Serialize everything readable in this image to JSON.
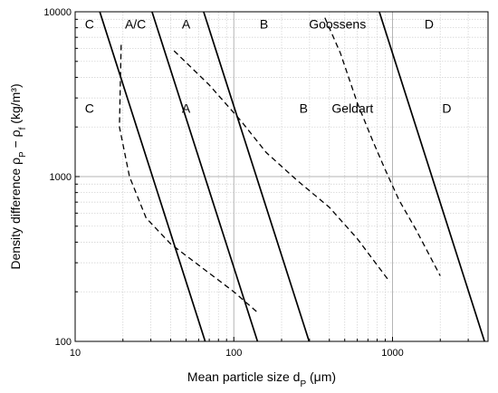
{
  "chart_data": {
    "type": "line",
    "xscale": "log",
    "yscale": "log",
    "xlim": [
      10,
      4000
    ],
    "ylim": [
      100,
      10000
    ],
    "grid": true,
    "xlabel": "Mean particle size d",
    "xlabel_sub": "P",
    "xlabel_unit": " (μm)",
    "ylabel": "Density difference ρ",
    "ylabel_sub1": "P",
    "ylabel_mid": " − ρ",
    "ylabel_sub2": "f",
    "ylabel_unit": " (kg/m³)",
    "xticks": [
      {
        "value": 10,
        "label": "10"
      },
      {
        "value": 100,
        "label": "100"
      },
      {
        "value": 1000,
        "label": "1000"
      }
    ],
    "yticks": [
      {
        "value": 100,
        "label": "100"
      },
      {
        "value": 1000,
        "label": "1000"
      },
      {
        "value": 10000,
        "label": "10000"
      }
    ],
    "series": [
      {
        "style": "solid",
        "points": [
          [
            14.3,
            10000
          ],
          [
            66,
            100
          ]
        ]
      },
      {
        "style": "solid",
        "points": [
          [
            30.5,
            10000
          ],
          [
            141,
            100
          ]
        ]
      },
      {
        "style": "solid",
        "points": [
          [
            64.5,
            10000
          ],
          [
            298,
            100
          ]
        ]
      },
      {
        "style": "solid",
        "points": [
          [
            825,
            10000
          ],
          [
            3800,
            100
          ]
        ]
      },
      {
        "style": "dashed",
        "points": [
          [
            19.5,
            6300
          ],
          [
            19,
            2000
          ],
          [
            22,
            1000
          ],
          [
            28,
            560
          ],
          [
            40,
            390
          ],
          [
            60,
            290
          ],
          [
            100,
            200
          ],
          [
            141,
            150
          ]
        ]
      },
      {
        "style": "dashed",
        "points": [
          [
            42,
            5800
          ],
          [
            70,
            3600
          ],
          [
            110,
            2200
          ],
          [
            160,
            1400
          ],
          [
            250,
            950
          ],
          [
            400,
            650
          ],
          [
            600,
            420
          ],
          [
            960,
            230
          ]
        ]
      },
      {
        "style": "dashed",
        "points": [
          [
            375,
            9200
          ],
          [
            470,
            5600
          ],
          [
            600,
            2800
          ],
          [
            750,
            1650
          ],
          [
            900,
            1100
          ],
          [
            1100,
            720
          ],
          [
            1400,
            480
          ],
          [
            2000,
            250
          ]
        ]
      }
    ],
    "annotations": [
      {
        "text": "C",
        "x": 12.3,
        "y": 8300
      },
      {
        "text": "A/C",
        "x": 24,
        "y": 8300
      },
      {
        "text": "A",
        "x": 50,
        "y": 8300
      },
      {
        "text": "B",
        "x": 155,
        "y": 8300
      },
      {
        "text": "Goossens",
        "x": 450,
        "y": 8300
      },
      {
        "text": "D",
        "x": 1700,
        "y": 8300
      },
      {
        "text": "C",
        "x": 12.3,
        "y": 2550
      },
      {
        "text": "A",
        "x": 50,
        "y": 2550
      },
      {
        "text": "B",
        "x": 275,
        "y": 2550
      },
      {
        "text": "Geldart",
        "x": 560,
        "y": 2550
      },
      {
        "text": "D",
        "x": 2200,
        "y": 2550
      }
    ]
  }
}
